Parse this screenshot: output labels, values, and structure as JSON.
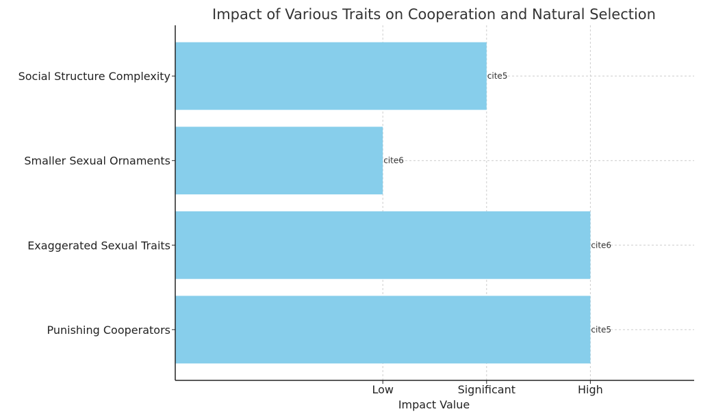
{
  "chart_data": {
    "type": "bar",
    "orientation": "horizontal",
    "title": "Impact of Various Traits on Cooperation and Natural Selection",
    "xlabel": "Impact Value",
    "ylabel": "",
    "categories": [
      "Punishing Cooperators",
      "Exaggerated Sexual Traits",
      "Smaller Sexual Ornaments",
      "Social Structure Complexity"
    ],
    "values": [
      3,
      3,
      1,
      2
    ],
    "bar_labels": [
      "cite5",
      "cite6",
      "cite6",
      "cite5"
    ],
    "xticks": [
      {
        "value": 1,
        "label": "Low"
      },
      {
        "value": 2,
        "label": "Significant"
      },
      {
        "value": 3,
        "label": "High"
      }
    ],
    "xlim": [
      -1,
      4
    ],
    "grid": true,
    "bar_color": "#87CEEB"
  }
}
